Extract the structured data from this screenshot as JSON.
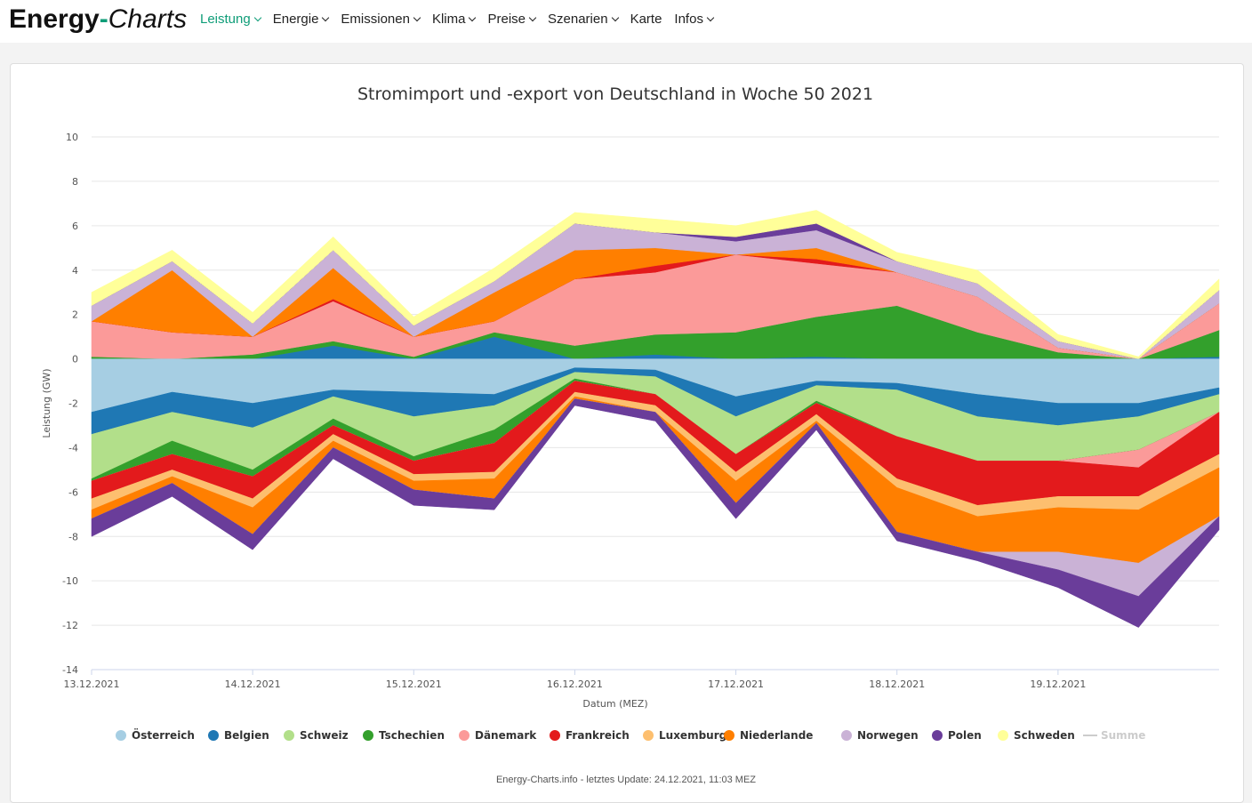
{
  "nav": {
    "logo_part1": "Energy",
    "logo_dash": "-",
    "logo_part2": "Charts",
    "menu": [
      {
        "label": "Leistung",
        "dropdown": true,
        "active": true
      },
      {
        "label": "Energie",
        "dropdown": true,
        "active": false
      },
      {
        "label": "Emissionen",
        "dropdown": true,
        "active": false
      },
      {
        "label": "Klima",
        "dropdown": true,
        "active": false
      },
      {
        "label": "Preise",
        "dropdown": true,
        "active": false
      },
      {
        "label": "Szenarien",
        "dropdown": true,
        "active": false
      },
      {
        "label": "Karte",
        "dropdown": false,
        "active": false
      },
      {
        "label": "Infos",
        "dropdown": true,
        "active": false
      }
    ]
  },
  "colors": {
    "accent": "#0f9d78"
  },
  "footer": "Energy-Charts.info - letztes Update: 24.12.2021, 11:03 MEZ",
  "chart_data": {
    "type": "area",
    "stacked": true,
    "title": "Stromimport und -export von Deutschland in Woche 50 2021",
    "xlabel": "Datum (MEZ)",
    "ylabel": "Leistung (GW)",
    "ylim": [
      -14,
      10
    ],
    "yticks": [
      10,
      8,
      6,
      4,
      2,
      0,
      -2,
      -4,
      -6,
      -8,
      -10,
      -12,
      -14
    ],
    "x": [
      "13.12.2021 00:00",
      "13.12.2021 12:00",
      "14.12.2021 00:00",
      "14.12.2021 12:00",
      "15.12.2021 00:00",
      "15.12.2021 12:00",
      "16.12.2021 00:00",
      "16.12.2021 12:00",
      "17.12.2021 00:00",
      "17.12.2021 12:00",
      "18.12.2021 00:00",
      "18.12.2021 12:00",
      "19.12.2021 00:00",
      "19.12.2021 12:00",
      "19.12.2021 23:00"
    ],
    "xticks": [
      "13.12.2021",
      "14.12.2021",
      "15.12.2021",
      "16.12.2021",
      "17.12.2021",
      "18.12.2021",
      "19.12.2021"
    ],
    "series": [
      {
        "name": "Österreich",
        "color": "#a6cee3",
        "import": [
          0,
          0,
          0,
          0,
          0,
          0,
          0,
          0,
          0,
          0,
          0,
          0,
          0,
          0,
          0
        ],
        "export": [
          2.4,
          1.5,
          2.0,
          1.4,
          1.5,
          1.6,
          0.4,
          0.5,
          1.7,
          1.0,
          1.1,
          1.6,
          2.0,
          2.0,
          1.3
        ]
      },
      {
        "name": "Belgien",
        "color": "#1f78b4",
        "import": [
          0,
          0,
          0,
          0.6,
          0,
          1.0,
          0,
          0.2,
          0,
          0.1,
          0,
          0,
          0,
          0,
          0.1
        ],
        "export": [
          1.0,
          0.9,
          1.1,
          0.3,
          1.1,
          0.5,
          0.2,
          0.3,
          0.9,
          0.2,
          0.3,
          1.0,
          1.0,
          0.6,
          0.3
        ]
      },
      {
        "name": "Schweiz",
        "color": "#b2df8a",
        "import": [
          0,
          0,
          0,
          0,
          0,
          0,
          0,
          0,
          0,
          0,
          0,
          0,
          0,
          0,
          0
        ],
        "export": [
          2.0,
          1.3,
          1.9,
          1.0,
          1.8,
          1.1,
          0.3,
          0.8,
          1.7,
          0.7,
          2.1,
          2.0,
          1.6,
          1.5,
          0.8
        ]
      },
      {
        "name": "Tschechien",
        "color": "#33a02c",
        "import": [
          0.1,
          0,
          0.2,
          0.2,
          0.1,
          0.2,
          0.6,
          0.9,
          1.2,
          1.8,
          2.4,
          1.2,
          0.3,
          0,
          1.2
        ],
        "export": [
          0.1,
          0.6,
          0.3,
          0.3,
          0.2,
          0.6,
          0.1,
          0,
          0,
          0.1,
          0,
          0,
          0,
          0,
          0
        ]
      },
      {
        "name": "Dänemark",
        "color": "#fb9a99",
        "import": [
          1.6,
          1.2,
          0.8,
          1.8,
          0.9,
          0.5,
          3.0,
          2.8,
          3.5,
          2.4,
          1.5,
          1.6,
          0.2,
          0,
          1.2
        ],
        "export": [
          0,
          0,
          0,
          0,
          0,
          0,
          0,
          0,
          0,
          0,
          0,
          0,
          0,
          0.8,
          0
        ]
      },
      {
        "name": "Frankreich",
        "color": "#e31a1c",
        "import": [
          0,
          0,
          0,
          0.1,
          0,
          0,
          0,
          0.3,
          0,
          0.2,
          0,
          0,
          0,
          0,
          0
        ],
        "export": [
          0.8,
          0.7,
          1.0,
          0.4,
          0.6,
          1.3,
          0.5,
          0.5,
          0.8,
          0.5,
          1.9,
          2.0,
          1.6,
          1.3,
          1.9
        ]
      },
      {
        "name": "Luxemburg",
        "color": "#fdbf6f",
        "import": [
          0,
          0,
          0,
          0,
          0,
          0,
          0,
          0,
          0,
          0,
          0,
          0,
          0,
          0,
          0
        ],
        "export": [
          0.5,
          0.3,
          0.4,
          0.3,
          0.3,
          0.3,
          0.2,
          0.3,
          0.4,
          0.3,
          0.4,
          0.5,
          0.5,
          0.6,
          0.6
        ]
      },
      {
        "name": "Niederlande",
        "color": "#ff7f00",
        "import": [
          0,
          2.8,
          0,
          1.4,
          0,
          1.3,
          1.3,
          0.8,
          0,
          0.5,
          0,
          0,
          0,
          0,
          0
        ],
        "export": [
          0.4,
          0.3,
          1.2,
          0.3,
          0.4,
          0.9,
          0.1,
          0,
          1.0,
          0.1,
          2.0,
          1.6,
          2.0,
          2.4,
          2.2
        ]
      },
      {
        "name": "Norwegen",
        "color": "#cab2d6",
        "import": [
          0.7,
          0.4,
          0.6,
          0.8,
          0.5,
          0.5,
          1.2,
          0.7,
          0.6,
          0.8,
          0.5,
          0.6,
          0.3,
          0,
          0.6
        ],
        "export": [
          0,
          0,
          0,
          0,
          0,
          0,
          0,
          0,
          0,
          0,
          0,
          0,
          0.8,
          1.5,
          0
        ]
      },
      {
        "name": "Polen",
        "color": "#6a3d9a",
        "import": [
          0,
          0,
          0,
          0,
          0,
          0,
          0,
          0,
          0.2,
          0.3,
          0,
          0,
          0,
          0,
          0
        ],
        "export": [
          0.8,
          0.6,
          0.7,
          0.5,
          0.7,
          0.5,
          0.3,
          0.4,
          0.7,
          0.3,
          0.4,
          0.4,
          0.8,
          1.4,
          0.6
        ]
      },
      {
        "name": "Schweden",
        "color": "#ffff99",
        "import": [
          0.6,
          0.5,
          0.5,
          0.6,
          0.4,
          0.6,
          0.5,
          0.6,
          0.5,
          0.6,
          0.4,
          0.6,
          0.3,
          0.1,
          0.5
        ],
        "export": [
          0,
          0,
          0,
          0,
          0,
          0,
          0,
          0,
          0,
          0,
          0,
          0,
          0,
          0,
          0
        ]
      },
      {
        "name": "Summe",
        "color": "#cccccc",
        "hidden": true
      }
    ]
  }
}
